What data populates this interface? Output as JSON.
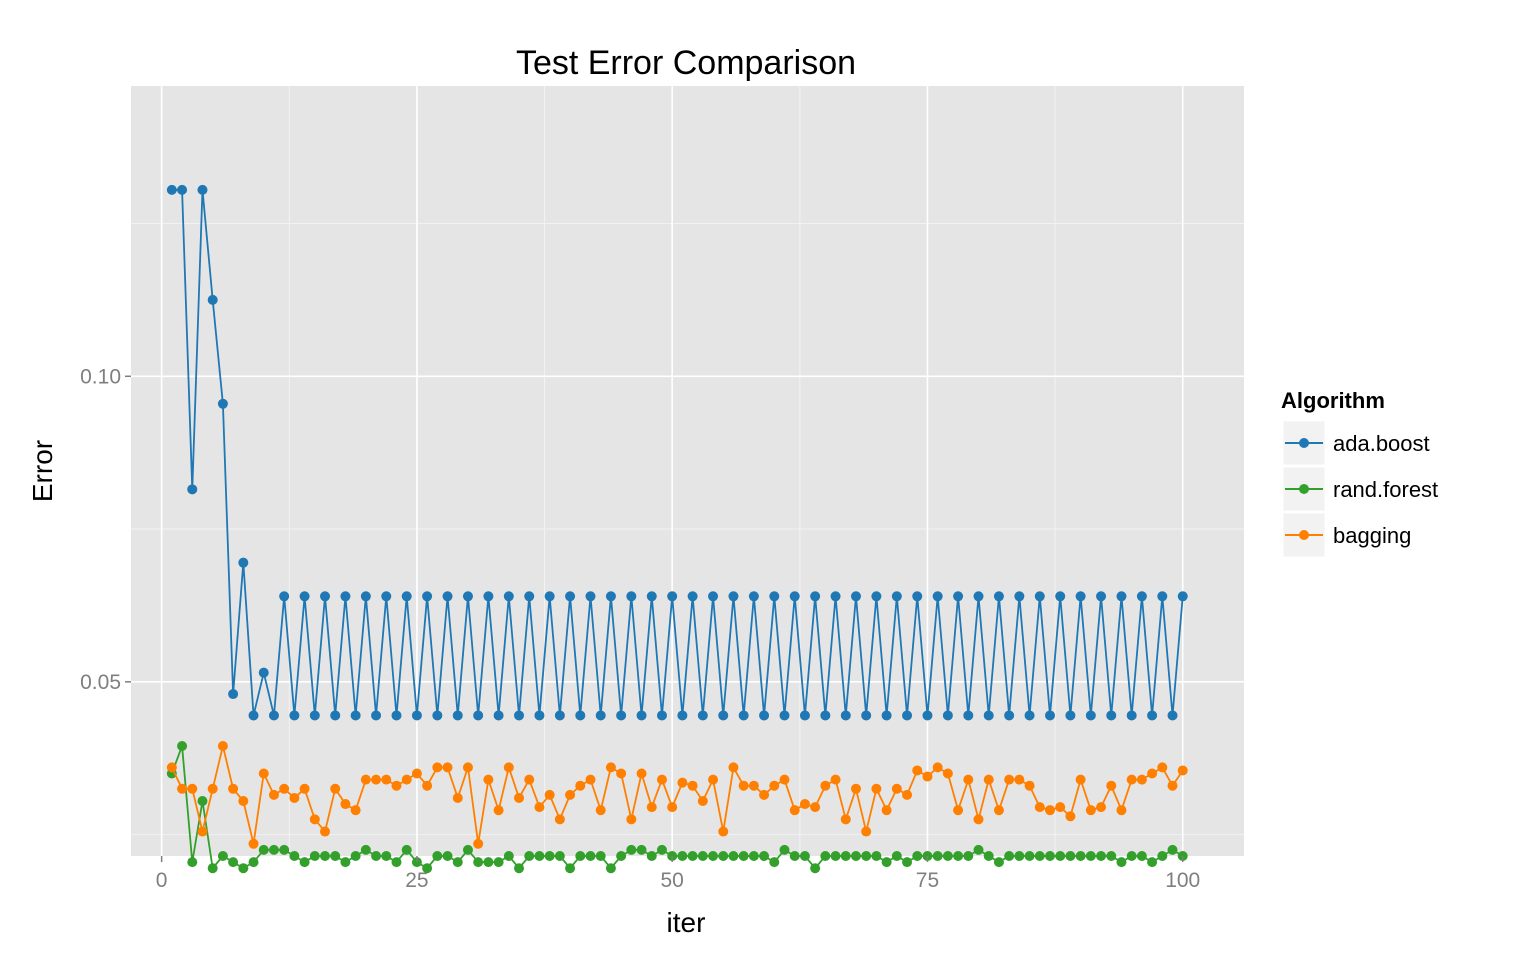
{
  "chart_data": {
    "type": "line",
    "title": "Test Error Comparison",
    "xlabel": "iter",
    "ylabel": "Error",
    "xlim": [
      -3,
      106
    ],
    "ylim": [
      0.0215,
      0.1475
    ],
    "x_ticks": [
      0,
      25,
      50,
      75,
      100
    ],
    "x_tick_labels": [
      "0",
      "25",
      "50",
      "75",
      "100"
    ],
    "y_ticks": [
      0.05,
      0.1
    ],
    "y_tick_labels": [
      "0.05",
      "0.10"
    ],
    "grid": true,
    "background": "#e5e5e5",
    "legend": {
      "title": "Algorithm",
      "position": "right"
    },
    "series": [
      {
        "name": "ada.boost",
        "color": "#1f78b4",
        "x": [
          1,
          2,
          3,
          4,
          5,
          6,
          7,
          8,
          9,
          10,
          11,
          12,
          13,
          14,
          15,
          16,
          17,
          18,
          19,
          20,
          21,
          22,
          23,
          24,
          25,
          26,
          27,
          28,
          29,
          30,
          31,
          32,
          33,
          34,
          35,
          36,
          37,
          38,
          39,
          40,
          41,
          42,
          43,
          44,
          45,
          46,
          47,
          48,
          49,
          50,
          51,
          52,
          53,
          54,
          55,
          56,
          57,
          58,
          59,
          60,
          61,
          62,
          63,
          64,
          65,
          66,
          67,
          68,
          69,
          70,
          71,
          72,
          73,
          74,
          75,
          76,
          77,
          78,
          79,
          80,
          81,
          82,
          83,
          84,
          85,
          86,
          87,
          88,
          89,
          90,
          91,
          92,
          93,
          94,
          95,
          96,
          97,
          98,
          99,
          100
        ],
        "values": [
          0.1305,
          0.1305,
          0.0815,
          0.1305,
          0.1125,
          0.0955,
          0.048,
          0.0695,
          0.0445,
          0.0515,
          0.0445,
          0.064,
          0.0445,
          0.064,
          0.0445,
          0.064,
          0.0445,
          0.064,
          0.0445,
          0.064,
          0.0445,
          0.064,
          0.0445,
          0.064,
          0.0445,
          0.064,
          0.0445,
          0.064,
          0.0445,
          0.064,
          0.0445,
          0.064,
          0.0445,
          0.064,
          0.0445,
          0.064,
          0.0445,
          0.064,
          0.0445,
          0.064,
          0.0445,
          0.064,
          0.0445,
          0.064,
          0.0445,
          0.064,
          0.0445,
          0.064,
          0.0445,
          0.064,
          0.0445,
          0.064,
          0.0445,
          0.064,
          0.0445,
          0.064,
          0.0445,
          0.064,
          0.0445,
          0.064,
          0.0445,
          0.064,
          0.0445,
          0.064,
          0.0445,
          0.064,
          0.0445,
          0.064,
          0.0445,
          0.064,
          0.0445,
          0.064,
          0.0445,
          0.064,
          0.0445,
          0.064,
          0.0445,
          0.064,
          0.0445,
          0.064,
          0.0445,
          0.064,
          0.0445,
          0.064,
          0.0445,
          0.064,
          0.0445,
          0.064,
          0.0445,
          0.064,
          0.0445,
          0.064,
          0.0445,
          0.064,
          0.0445,
          0.064,
          0.0445,
          0.064,
          0.0445,
          0.064
        ]
      },
      {
        "name": "rand.forest",
        "color": "#33a02c",
        "x": [
          1,
          2,
          3,
          4,
          5,
          6,
          7,
          8,
          9,
          10,
          11,
          12,
          13,
          14,
          15,
          16,
          17,
          18,
          19,
          20,
          21,
          22,
          23,
          24,
          25,
          26,
          27,
          28,
          29,
          30,
          31,
          32,
          33,
          34,
          35,
          36,
          37,
          38,
          39,
          40,
          41,
          42,
          43,
          44,
          45,
          46,
          47,
          48,
          49,
          50,
          51,
          52,
          53,
          54,
          55,
          56,
          57,
          58,
          59,
          60,
          61,
          62,
          63,
          64,
          65,
          66,
          67,
          68,
          69,
          70,
          71,
          72,
          73,
          74,
          75,
          76,
          77,
          78,
          79,
          80,
          81,
          82,
          83,
          84,
          85,
          86,
          87,
          88,
          89,
          90,
          91,
          92,
          93,
          94,
          95,
          96,
          97,
          98,
          99,
          100
        ],
        "values": [
          0.035,
          0.0395,
          0.0205,
          0.0305,
          0.0195,
          0.0215,
          0.0205,
          0.0195,
          0.0205,
          0.0225,
          0.0225,
          0.0225,
          0.0215,
          0.0205,
          0.0215,
          0.0215,
          0.0215,
          0.0205,
          0.0215,
          0.0225,
          0.0215,
          0.0215,
          0.0205,
          0.0225,
          0.0205,
          0.0195,
          0.0215,
          0.0215,
          0.0205,
          0.0225,
          0.0205,
          0.0205,
          0.0205,
          0.0215,
          0.0195,
          0.0215,
          0.0215,
          0.0215,
          0.0215,
          0.0195,
          0.0215,
          0.0215,
          0.0215,
          0.0195,
          0.0215,
          0.0225,
          0.0225,
          0.0215,
          0.0225,
          0.0215,
          0.0215,
          0.0215,
          0.0215,
          0.0215,
          0.0215,
          0.0215,
          0.0215,
          0.0215,
          0.0215,
          0.0205,
          0.0225,
          0.0215,
          0.0215,
          0.0195,
          0.0215,
          0.0215,
          0.0215,
          0.0215,
          0.0215,
          0.0215,
          0.0205,
          0.0215,
          0.0205,
          0.0215,
          0.0215,
          0.0215,
          0.0215,
          0.0215,
          0.0215,
          0.0225,
          0.0215,
          0.0205,
          0.0215,
          0.0215,
          0.0215,
          0.0215,
          0.0215,
          0.0215,
          0.0215,
          0.0215,
          0.0215,
          0.0215,
          0.0215,
          0.0205,
          0.0215,
          0.0215,
          0.0205,
          0.0215,
          0.0225,
          0.0215
        ]
      },
      {
        "name": "bagging",
        "color": "#ff7f00",
        "x": [
          1,
          2,
          3,
          4,
          5,
          6,
          7,
          8,
          9,
          10,
          11,
          12,
          13,
          14,
          15,
          16,
          17,
          18,
          19,
          20,
          21,
          22,
          23,
          24,
          25,
          26,
          27,
          28,
          29,
          30,
          31,
          32,
          33,
          34,
          35,
          36,
          37,
          38,
          39,
          40,
          41,
          42,
          43,
          44,
          45,
          46,
          47,
          48,
          49,
          50,
          51,
          52,
          53,
          54,
          55,
          56,
          57,
          58,
          59,
          60,
          61,
          62,
          63,
          64,
          65,
          66,
          67,
          68,
          69,
          70,
          71,
          72,
          73,
          74,
          75,
          76,
          77,
          78,
          79,
          80,
          81,
          82,
          83,
          84,
          85,
          86,
          87,
          88,
          89,
          90,
          91,
          92,
          93,
          94,
          95,
          96,
          97,
          98,
          99,
          100
        ],
        "values": [
          0.036,
          0.0325,
          0.0325,
          0.0255,
          0.0325,
          0.0395,
          0.0325,
          0.0305,
          0.0235,
          0.035,
          0.0315,
          0.0325,
          0.031,
          0.0325,
          0.0275,
          0.0255,
          0.0325,
          0.03,
          0.029,
          0.034,
          0.034,
          0.034,
          0.033,
          0.034,
          0.035,
          0.033,
          0.036,
          0.036,
          0.031,
          0.036,
          0.0235,
          0.034,
          0.029,
          0.036,
          0.031,
          0.034,
          0.0295,
          0.0315,
          0.0275,
          0.0315,
          0.033,
          0.034,
          0.029,
          0.036,
          0.035,
          0.0275,
          0.035,
          0.0295,
          0.034,
          0.0295,
          0.0335,
          0.033,
          0.0305,
          0.034,
          0.0255,
          0.036,
          0.033,
          0.033,
          0.0315,
          0.033,
          0.034,
          0.029,
          0.03,
          0.0295,
          0.033,
          0.034,
          0.0275,
          0.0325,
          0.0255,
          0.0325,
          0.029,
          0.0325,
          0.0315,
          0.0355,
          0.0345,
          0.036,
          0.035,
          0.029,
          0.034,
          0.0275,
          0.034,
          0.029,
          0.034,
          0.034,
          0.033,
          0.0295,
          0.029,
          0.0295,
          0.028,
          0.034,
          0.029,
          0.0295,
          0.033,
          0.029,
          0.034,
          0.034,
          0.035,
          0.036,
          0.033,
          0.0355
        ]
      }
    ]
  }
}
